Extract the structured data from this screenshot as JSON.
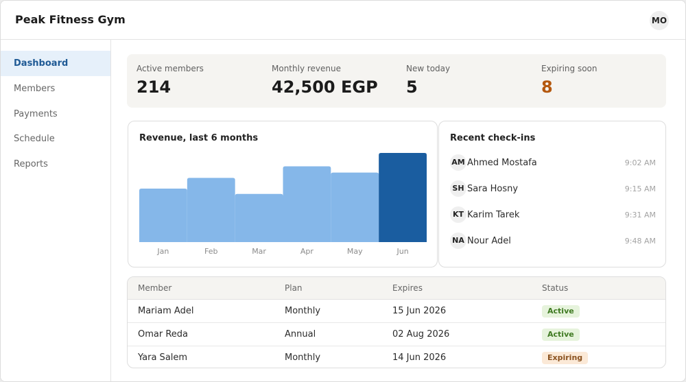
{
  "app": {
    "title": "Peak Fitness Gym",
    "user_initials": "MO"
  },
  "sidebar": {
    "items": [
      {
        "label": "Dashboard",
        "active": true
      },
      {
        "label": "Members",
        "active": false
      },
      {
        "label": "Payments",
        "active": false
      },
      {
        "label": "Schedule",
        "active": false
      },
      {
        "label": "Reports",
        "active": false
      }
    ]
  },
  "kpis": [
    {
      "label": "Active members",
      "value": "214"
    },
    {
      "label": "Monthly revenue",
      "value": "42,500 EGP"
    },
    {
      "label": "New today",
      "value": "5"
    },
    {
      "label": "Expiring soon",
      "value": "8",
      "color": "#b4580f"
    }
  ],
  "revenue_card": {
    "title": "Revenue, last 6 months"
  },
  "chart_data": {
    "type": "bar",
    "title": "Revenue, last 6 months",
    "categories": [
      "Jan",
      "Feb",
      "Mar",
      "Apr",
      "May",
      "Jun"
    ],
    "values": [
      60,
      72,
      54,
      85,
      78,
      100
    ],
    "highlight_index": 5,
    "colors": {
      "bar": "#85b7e9",
      "highlight": "#1a5da0"
    },
    "grid": false
  },
  "checkins": {
    "title": "Recent check-ins",
    "items": [
      {
        "initials": "AM",
        "name": "Ahmed Mostafa",
        "time": "9:02 AM"
      },
      {
        "initials": "SH",
        "name": "Sara Hosny",
        "time": "9:15 AM"
      },
      {
        "initials": "KT",
        "name": "Karim Tarek",
        "time": "9:31 AM"
      },
      {
        "initials": "NA",
        "name": "Nour Adel",
        "time": "9:48 AM"
      }
    ]
  },
  "members_table": {
    "headers": [
      "Member",
      "Plan",
      "Expires",
      "Status"
    ],
    "rows": [
      {
        "member": "Mariam Adel",
        "plan": "Monthly",
        "expires": "15 Jun 2026",
        "status": "Active",
        "status_type": "active"
      },
      {
        "member": "Omar Reda",
        "plan": "Annual",
        "expires": "02 Aug 2026",
        "status": "Active",
        "status_type": "active"
      },
      {
        "member": "Yara Salem",
        "plan": "Monthly",
        "expires": "14 Jun 2026",
        "status": "Expiring",
        "status_type": "expiring"
      }
    ]
  }
}
